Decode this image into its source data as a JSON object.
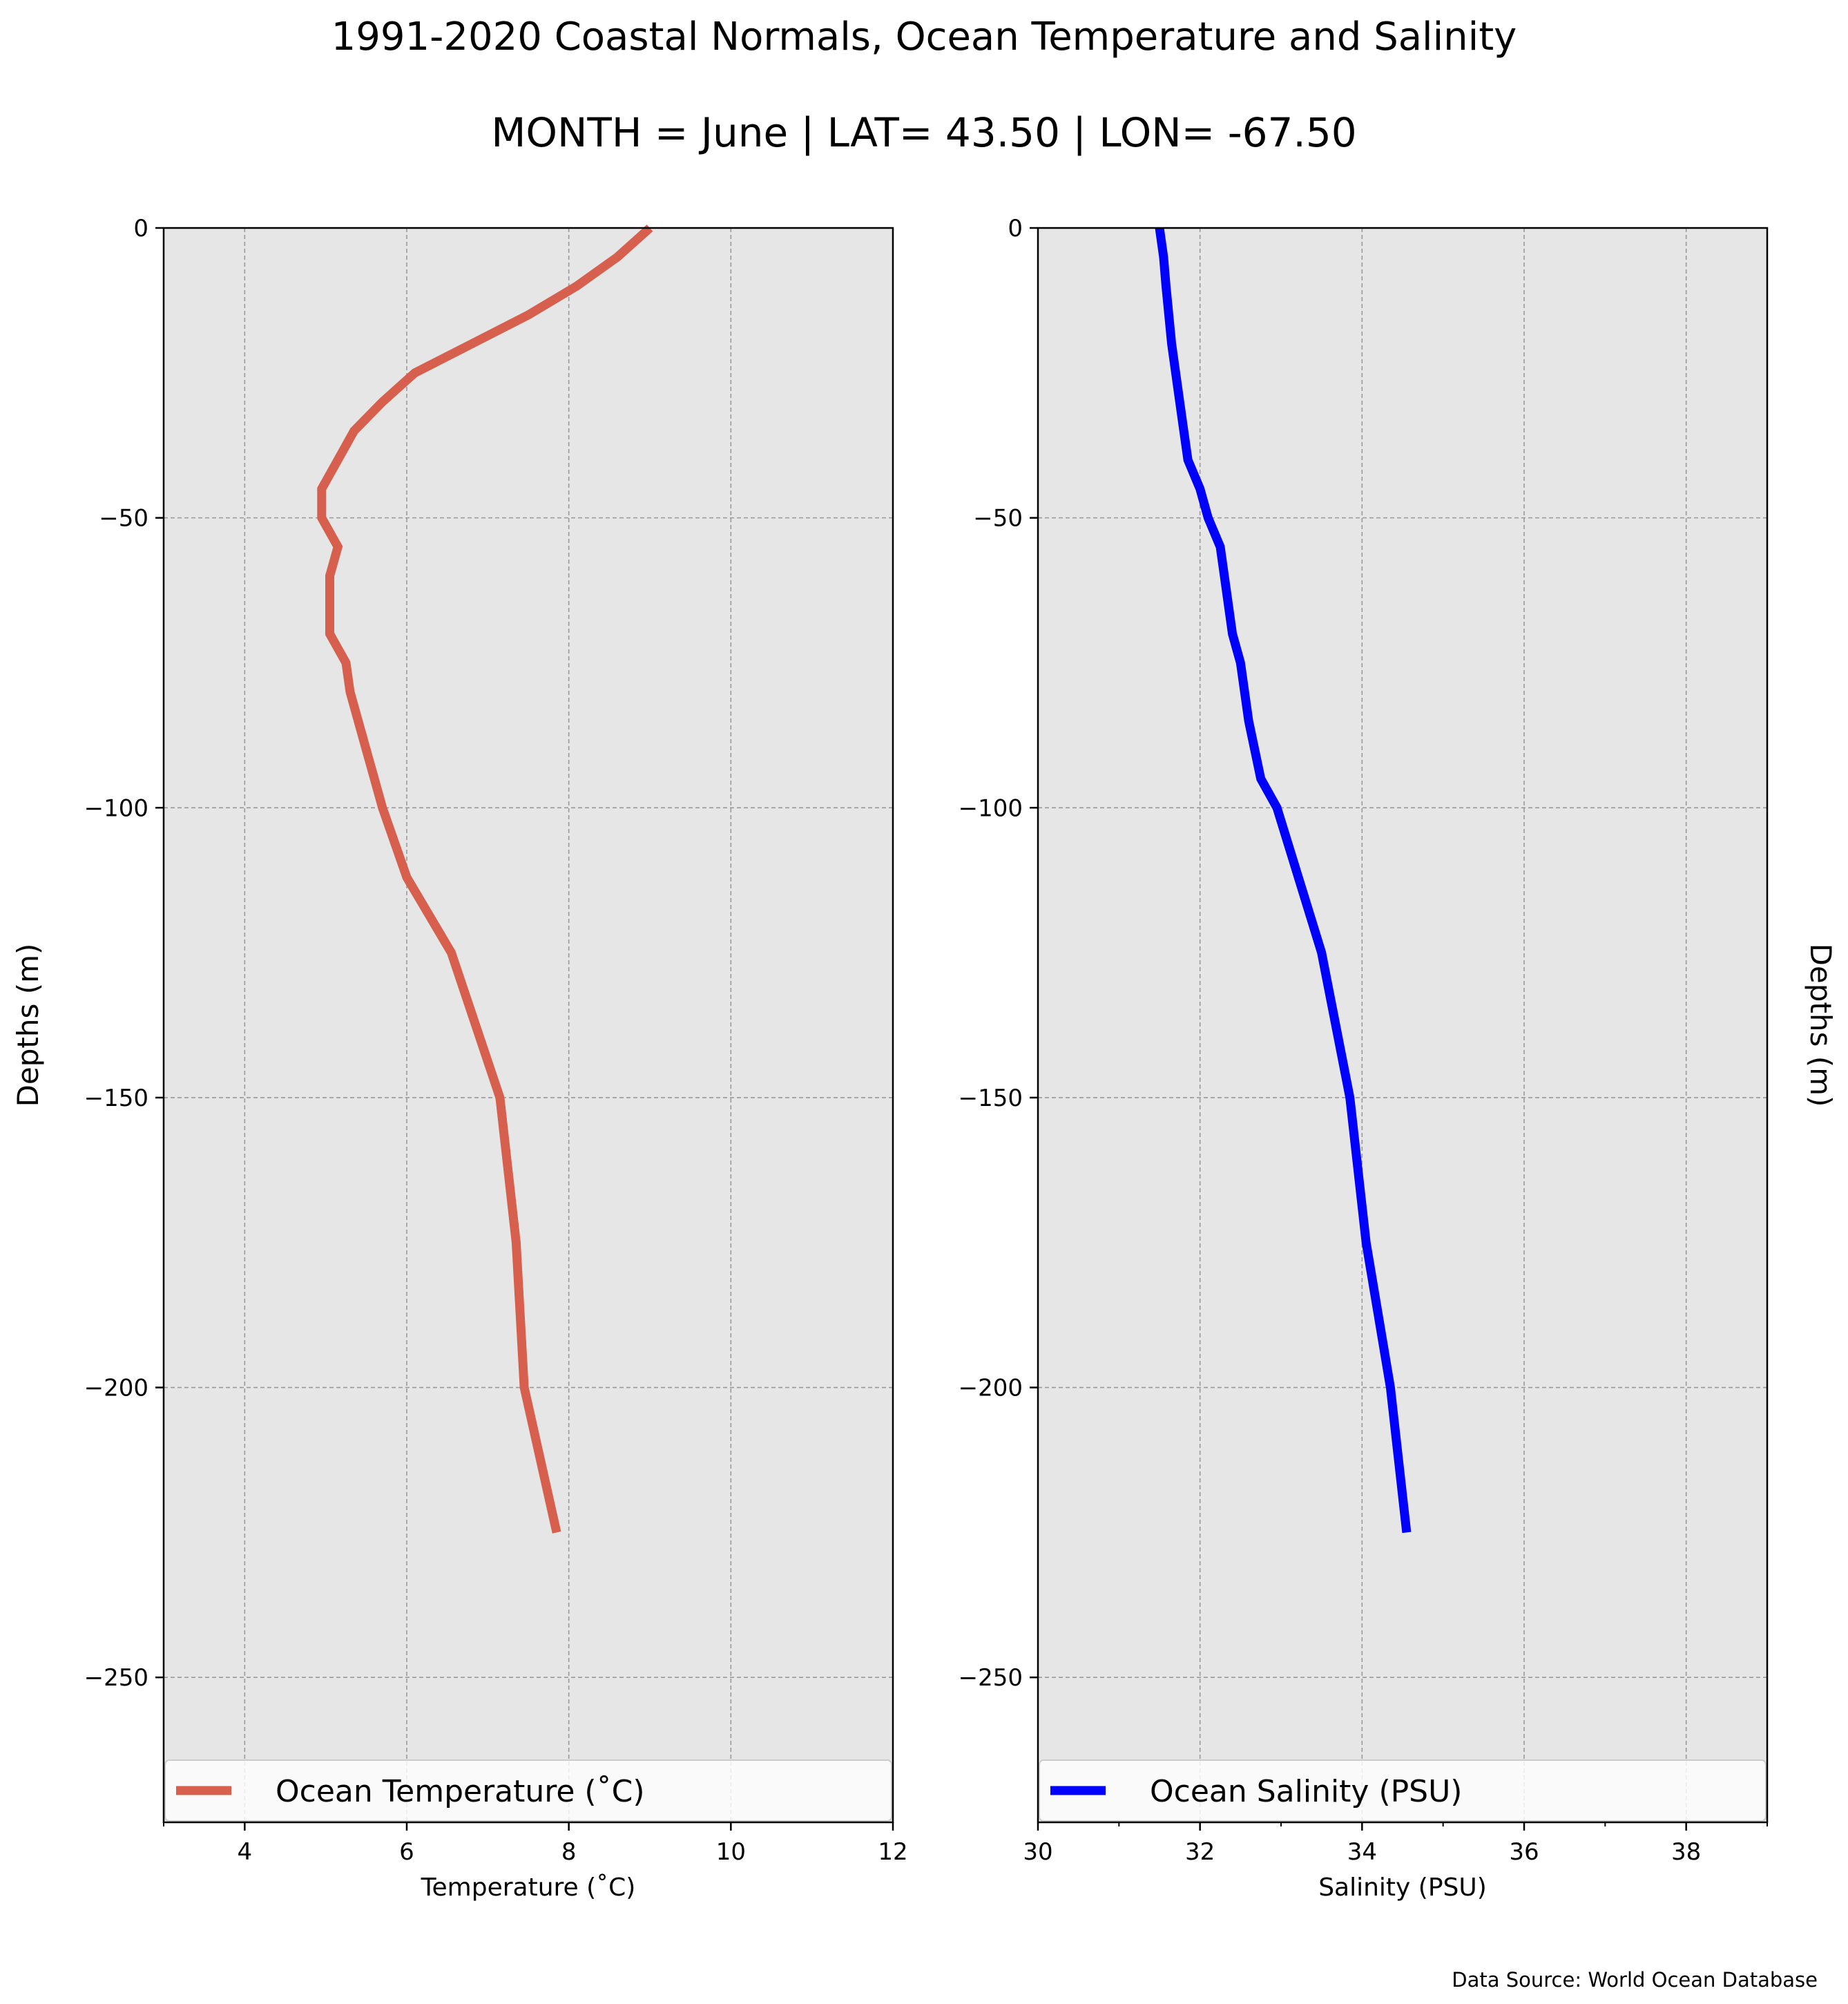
{
  "figure": {
    "title": "1991-2020 Coastal Normals, Ocean Temperature and Salinity",
    "subtitle": "MONTH = June | LAT= 43.50 | LON= -67.50",
    "source": "Data Source: World Ocean Database"
  },
  "colors": {
    "panel_bg": "#e6e6e6",
    "grid": "#999999",
    "temperature": "#d6604d",
    "salinity": "#0000ff"
  },
  "chart_data": [
    {
      "type": "line",
      "xlabel": "Temperature (˚C)",
      "ylabel": "Depths (m)",
      "xlim": [
        3,
        12
      ],
      "ylim": [
        -275,
        0
      ],
      "xticks": [
        4,
        6,
        8,
        10,
        12
      ],
      "yticks": [
        0,
        -50,
        -100,
        -150,
        -200,
        -250
      ],
      "grid": true,
      "legend_position": "lower center",
      "series": [
        {
          "name": "Ocean Temperature (˚C)",
          "color": "#d6604d",
          "points": [
            [
              9.0,
              0
            ],
            [
              8.6,
              -5
            ],
            [
              8.1,
              -10
            ],
            [
              7.5,
              -15
            ],
            [
              6.8,
              -20
            ],
            [
              6.1,
              -25
            ],
            [
              5.7,
              -30
            ],
            [
              5.35,
              -35
            ],
            [
              5.15,
              -40
            ],
            [
              4.95,
              -45
            ],
            [
              4.95,
              -50
            ],
            [
              5.15,
              -55
            ],
            [
              5.05,
              -60
            ],
            [
              5.05,
              -65
            ],
            [
              5.05,
              -70
            ],
            [
              5.25,
              -75
            ],
            [
              5.3,
              -80
            ],
            [
              5.4,
              -85
            ],
            [
              5.5,
              -90
            ],
            [
              5.6,
              -95
            ],
            [
              5.7,
              -100
            ],
            [
              6.0,
              -112
            ],
            [
              6.55,
              -125
            ],
            [
              7.15,
              -150
            ],
            [
              7.35,
              -175
            ],
            [
              7.45,
              -200
            ],
            [
              7.85,
              -225
            ]
          ]
        }
      ]
    },
    {
      "type": "line",
      "xlabel": "Salinity (PSU)",
      "ylabel": "Depths (m)",
      "xlim": [
        30,
        39
      ],
      "ylim": [
        -275,
        0
      ],
      "xticks": [
        30,
        32,
        34,
        36,
        38
      ],
      "yticks": [
        0,
        -50,
        -100,
        -150,
        -200,
        -250
      ],
      "grid": true,
      "legend_position": "lower center",
      "series": [
        {
          "name": "Ocean Salinity (PSU)",
          "color": "#0000ff",
          "points": [
            [
              31.5,
              0
            ],
            [
              31.55,
              -5
            ],
            [
              31.58,
              -10
            ],
            [
              31.65,
              -20
            ],
            [
              31.75,
              -30
            ],
            [
              31.85,
              -40
            ],
            [
              32.0,
              -45
            ],
            [
              32.1,
              -50
            ],
            [
              32.25,
              -55
            ],
            [
              32.3,
              -60
            ],
            [
              32.4,
              -70
            ],
            [
              32.5,
              -75
            ],
            [
              32.6,
              -85
            ],
            [
              32.75,
              -95
            ],
            [
              32.95,
              -100
            ],
            [
              33.5,
              -125
            ],
            [
              33.85,
              -150
            ],
            [
              34.05,
              -175
            ],
            [
              34.35,
              -200
            ],
            [
              34.55,
              -225
            ]
          ]
        }
      ]
    }
  ]
}
